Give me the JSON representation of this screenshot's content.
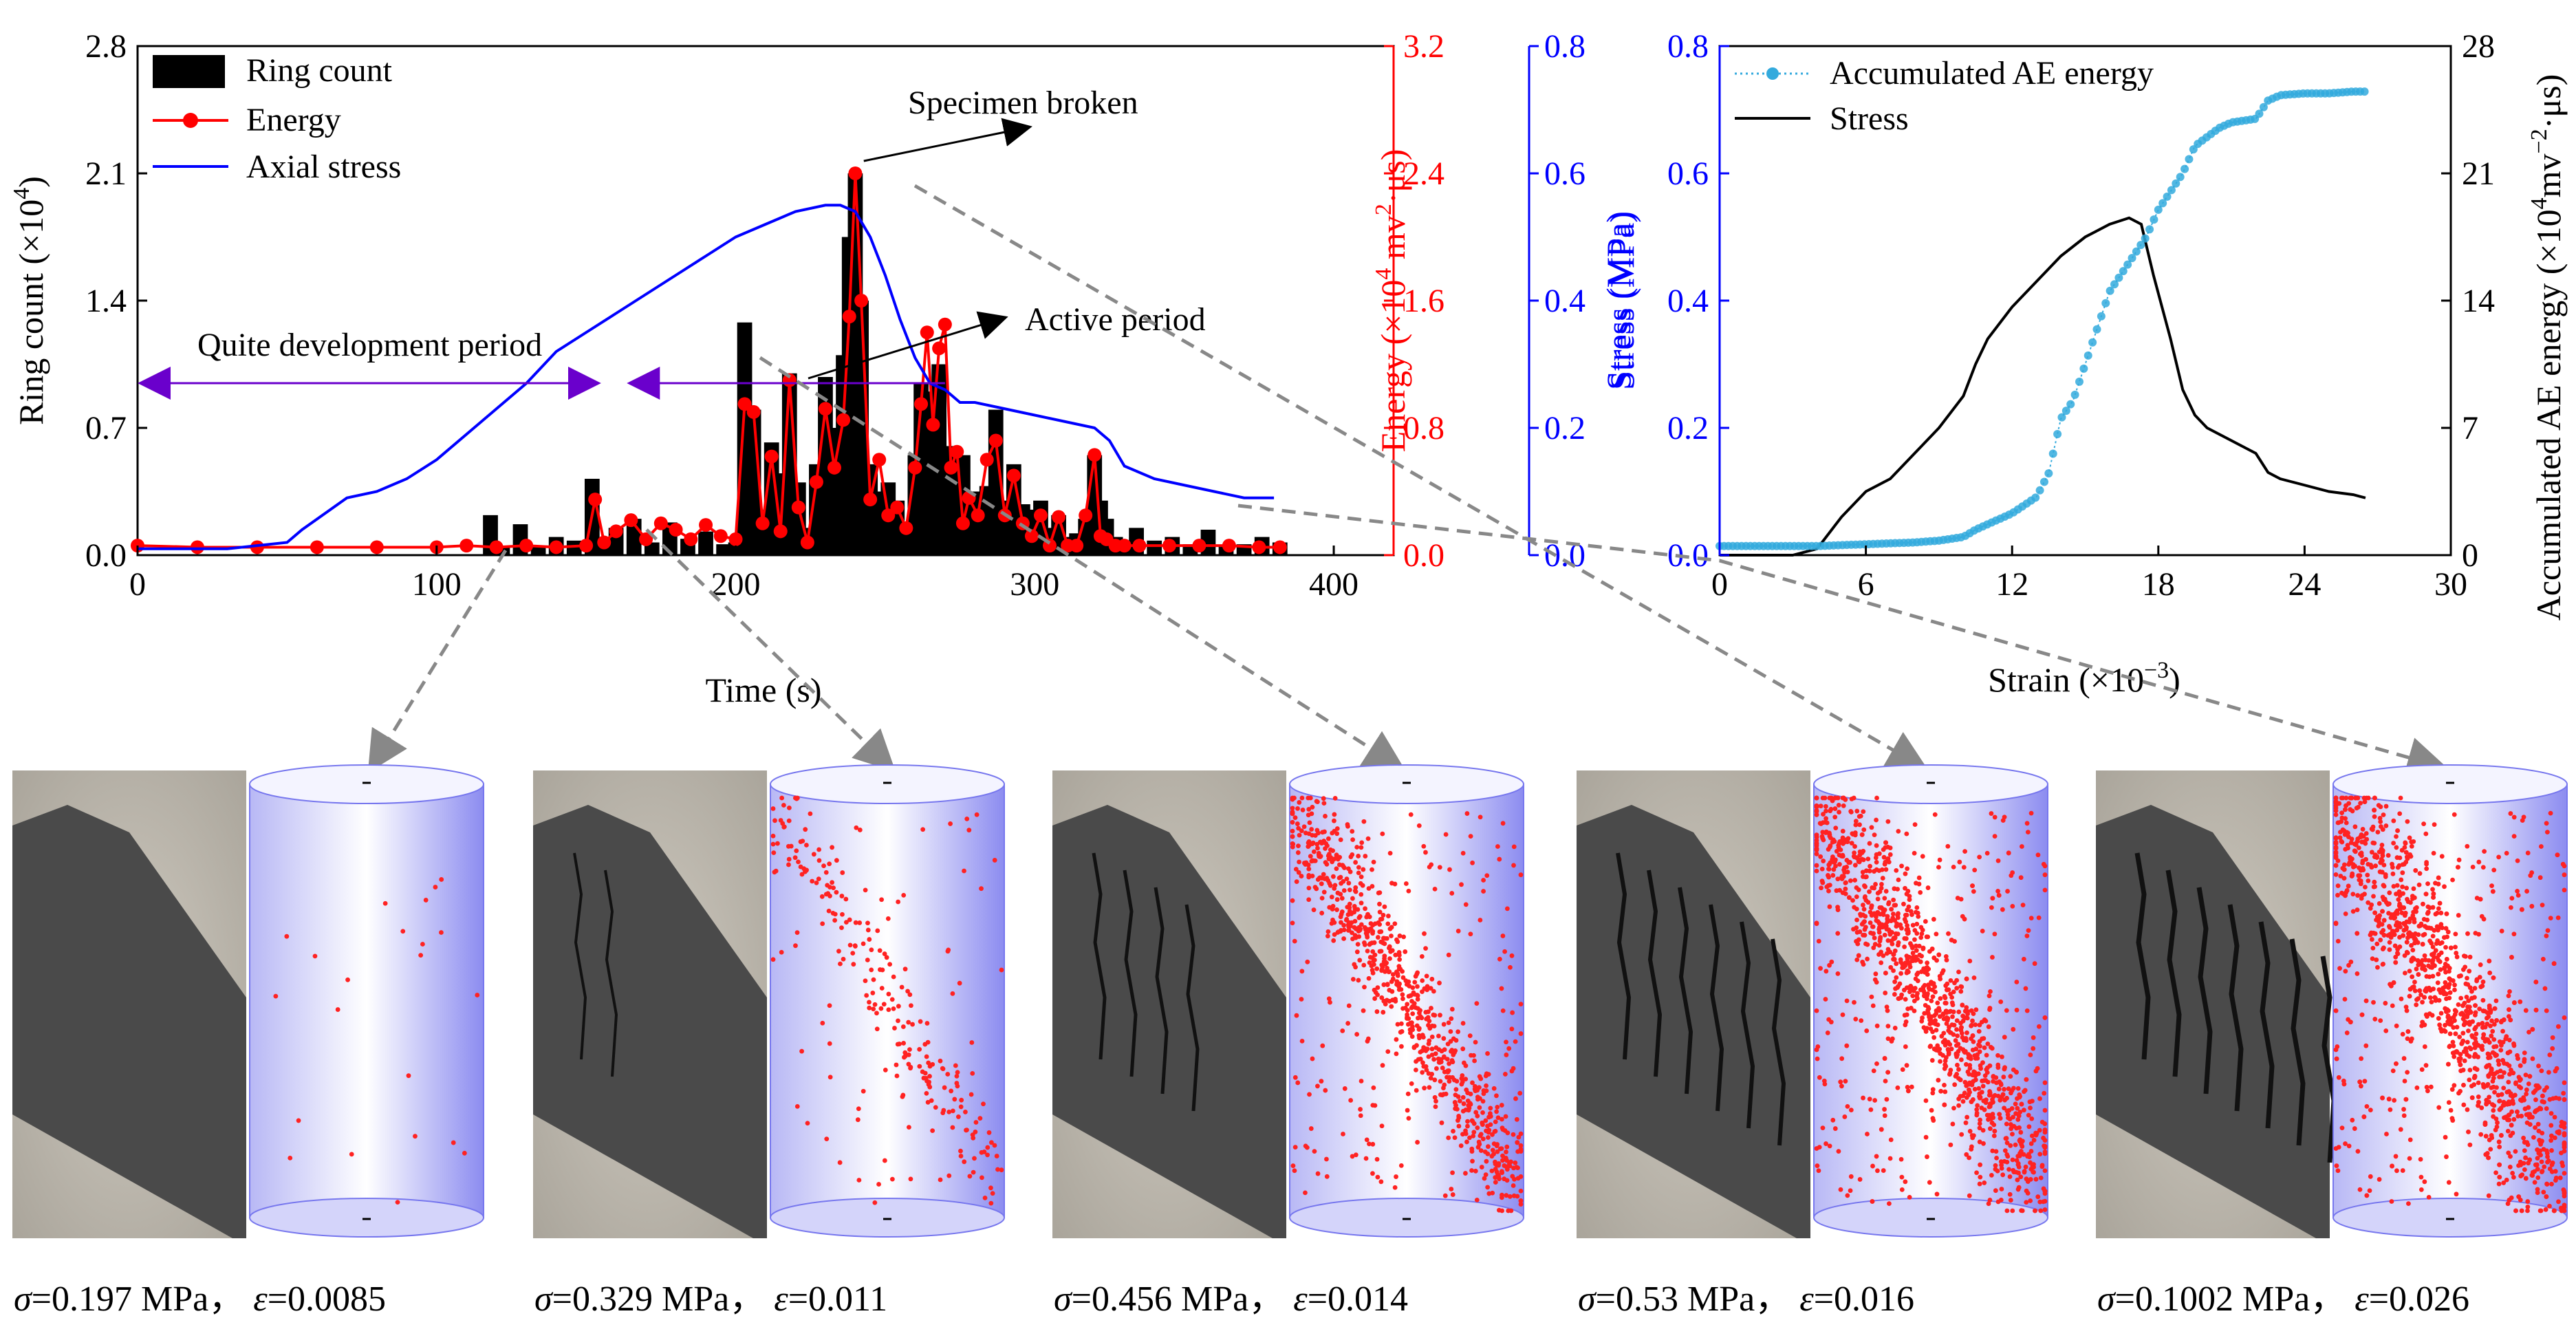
{
  "chart_data": [
    {
      "type": "bar+line",
      "title": "",
      "xlabel": "Time (s)",
      "xlim": [
        0,
        420
      ],
      "xticks": [
        0,
        100,
        200,
        300,
        400
      ],
      "y_left": {
        "label": "Ring count (×10",
        "label_exp": "4",
        "label_tail": ")",
        "lim": [
          0,
          2.8
        ],
        "ticks": [
          "0.0",
          "0.7",
          "1.4",
          "2.1",
          "2.8"
        ]
      },
      "y_right_energy": {
        "label": "Energy (×10",
        "label_exp": "4",
        "label_tail": " mv",
        "label_exp2": "2",
        "label_end": "·μs)",
        "lim": [
          0,
          3.2
        ],
        "ticks": [
          "0.0",
          "0.8",
          "1.6",
          "2.4",
          "3.2"
        ],
        "color": "#ff0000"
      },
      "y_right_stress": {
        "label": "Stress (MPa)",
        "lim": [
          0,
          0.8
        ],
        "ticks": [
          "0.0",
          "0.2",
          "0.4",
          "0.6",
          "0.8"
        ],
        "color": "#0000ff"
      },
      "legend": [
        {
          "name": "Ring count",
          "color": "#000000",
          "kind": "bar"
        },
        {
          "name": "Energy",
          "color": "#ff0000",
          "kind": "line-marker"
        },
        {
          "name": "Axial stress",
          "color": "#0000ff",
          "kind": "line"
        }
      ],
      "ring_count": {
        "x": [
          118,
          122,
          128,
          134,
          140,
          146,
          152,
          156,
          160,
          166,
          172,
          178,
          184,
          190,
          196,
          200,
          203,
          206,
          209,
          212,
          215,
          218,
          221,
          224,
          227,
          230,
          233,
          236,
          238,
          240,
          242,
          245,
          248,
          251,
          254,
          257,
          260,
          262,
          264,
          266,
          268,
          270,
          272,
          274,
          276,
          278,
          281,
          284,
          287,
          290,
          293,
          296,
          299,
          302,
          305,
          308,
          311,
          314,
          317,
          320,
          322,
          324,
          327,
          330,
          334,
          340,
          346,
          352,
          358,
          364,
          370,
          376,
          382
        ],
        "values": [
          0.22,
          0.05,
          0.17,
          0.05,
          0.1,
          0.08,
          0.42,
          0.06,
          0.15,
          0.2,
          0.07,
          0.18,
          0.09,
          0.13,
          0.06,
          0.07,
          1.28,
          0.8,
          0.25,
          0.62,
          0.45,
          1.0,
          0.4,
          0.15,
          0.5,
          0.98,
          0.7,
          1.1,
          1.75,
          2.1,
          1.4,
          0.5,
          0.35,
          0.4,
          0.3,
          0.18,
          0.55,
          0.95,
          0.9,
          0.5,
          1.05,
          0.52,
          0.6,
          0.4,
          0.55,
          0.3,
          0.35,
          0.38,
          0.8,
          0.3,
          0.5,
          0.28,
          0.25,
          0.3,
          0.15,
          0.22,
          0.1,
          0.12,
          0.2,
          0.55,
          0.3,
          0.2,
          0.1,
          0.08,
          0.15,
          0.08,
          0.1,
          0.06,
          0.14,
          0.05,
          0.06,
          0.1,
          0.07
        ]
      },
      "energy": {
        "x": [
          0,
          20,
          40,
          60,
          80,
          100,
          110,
          120,
          130,
          140,
          150,
          153,
          156,
          160,
          165,
          170,
          175,
          180,
          185,
          190,
          195,
          200,
          203,
          206,
          209,
          212,
          215,
          218,
          221,
          224,
          227,
          230,
          233,
          236,
          238,
          240,
          242,
          245,
          248,
          251,
          254,
          257,
          260,
          262,
          264,
          266,
          268,
          270,
          272,
          274,
          276,
          278,
          281,
          284,
          287,
          290,
          293,
          296,
          299,
          302,
          305,
          308,
          311,
          314,
          317,
          320,
          322,
          324,
          327,
          330,
          335,
          345,
          355,
          365,
          375,
          382
        ],
        "values": [
          0.06,
          0.05,
          0.05,
          0.05,
          0.05,
          0.05,
          0.06,
          0.05,
          0.06,
          0.05,
          0.06,
          0.35,
          0.08,
          0.15,
          0.22,
          0.1,
          0.2,
          0.16,
          0.1,
          0.19,
          0.12,
          0.1,
          0.95,
          0.9,
          0.2,
          0.62,
          0.15,
          1.1,
          0.3,
          0.08,
          0.46,
          0.92,
          0.55,
          0.85,
          1.5,
          2.4,
          1.6,
          0.35,
          0.6,
          0.25,
          0.3,
          0.17,
          0.55,
          0.95,
          1.4,
          0.82,
          1.3,
          1.45,
          0.55,
          0.65,
          0.2,
          0.36,
          0.25,
          0.6,
          0.72,
          0.25,
          0.5,
          0.2,
          0.12,
          0.25,
          0.06,
          0.24,
          0.06,
          0.06,
          0.25,
          0.63,
          0.12,
          0.1,
          0.06,
          0.06,
          0.06,
          0.06,
          0.06,
          0.06,
          0.05,
          0.05
        ]
      },
      "axial_stress": {
        "x": [
          0,
          30,
          50,
          55,
          70,
          80,
          90,
          100,
          110,
          120,
          130,
          140,
          150,
          160,
          170,
          180,
          190,
          200,
          210,
          220,
          230,
          235,
          240,
          245,
          250,
          255,
          260,
          265,
          270,
          275,
          280,
          290,
          300,
          310,
          320,
          325,
          330,
          340,
          350,
          360,
          370,
          380
        ],
        "values": [
          0.01,
          0.01,
          0.02,
          0.04,
          0.09,
          0.1,
          0.12,
          0.15,
          0.19,
          0.23,
          0.27,
          0.32,
          0.35,
          0.38,
          0.41,
          0.44,
          0.47,
          0.5,
          0.52,
          0.54,
          0.55,
          0.55,
          0.54,
          0.5,
          0.44,
          0.37,
          0.31,
          0.27,
          0.26,
          0.24,
          0.24,
          0.23,
          0.22,
          0.21,
          0.2,
          0.18,
          0.14,
          0.12,
          0.11,
          0.1,
          0.09,
          0.09
        ]
      },
      "annotations": {
        "specimen_broken": "Specimen broken",
        "active_period": "Active period",
        "quiet_period": "Quite development period",
        "quiet_range": [
          0,
          155
        ],
        "active_range": [
          165,
          270
        ]
      }
    },
    {
      "type": "line",
      "title": "",
      "xlabel": "Strain (×10",
      "xlabel_exp": "−3",
      "xlabel_tail": ")",
      "xlim": [
        0,
        30
      ],
      "xticks": [
        "0",
        "6",
        "12",
        "18",
        "24",
        "30"
      ],
      "y_left": {
        "label": "Stress (MPa)",
        "lim": [
          0,
          0.8
        ],
        "ticks": [
          "0.0",
          "0.2",
          "0.4",
          "0.6",
          "0.8"
        ],
        "color": "#0000ff"
      },
      "y_right": {
        "label": "Accumulated AE energy (×10",
        "label_exp": "4",
        "label_tail": "mv",
        "label_exp2": "−2",
        "label_end": "·μs)",
        "lim": [
          0,
          28
        ],
        "ticks": [
          "0",
          "7",
          "14",
          "21",
          "28"
        ]
      },
      "legend": [
        {
          "name": "Accumulated AE energy",
          "color": "#33aadd",
          "kind": "dot-line"
        },
        {
          "name": "Stress",
          "color": "#000000",
          "kind": "line"
        }
      ],
      "stress": {
        "x": [
          0,
          3,
          4,
          5,
          6,
          7,
          8,
          9,
          10,
          10.5,
          11,
          12,
          13,
          14,
          15,
          16,
          16.8,
          17.3,
          17.8,
          18.5,
          19,
          19.5,
          20,
          21,
          22,
          22.5,
          23,
          24,
          25,
          26,
          26.5
        ],
        "values": [
          0,
          0,
          0.01,
          0.06,
          0.1,
          0.12,
          0.16,
          0.2,
          0.25,
          0.3,
          0.34,
          0.39,
          0.43,
          0.47,
          0.5,
          0.52,
          0.53,
          0.52,
          0.44,
          0.34,
          0.26,
          0.22,
          0.2,
          0.18,
          0.16,
          0.13,
          0.12,
          0.11,
          0.1,
          0.095,
          0.09
        ]
      },
      "accumulated_energy": {
        "x": [
          0,
          2,
          4,
          6,
          8,
          9,
          10,
          10.5,
          11,
          12,
          13,
          13.5,
          14,
          14.5,
          15,
          15.5,
          16,
          16.5,
          17,
          17.5,
          18,
          19,
          19.5,
          20,
          20.5,
          21,
          21.5,
          22,
          22.5,
          23,
          24,
          25,
          26,
          26.5
        ],
        "values": [
          0.5,
          0.5,
          0.5,
          0.6,
          0.7,
          0.8,
          1.0,
          1.4,
          1.7,
          2.3,
          3.2,
          4.5,
          7.5,
          8.5,
          10.5,
          12.5,
          14.5,
          15.5,
          16.5,
          17.5,
          19.0,
          21.0,
          22.5,
          23.0,
          23.5,
          23.8,
          23.9,
          24.0,
          25.0,
          25.3,
          25.4,
          25.4,
          25.5,
          25.5
        ]
      }
    }
  ],
  "panels": [
    {
      "sigma": "0.197",
      "eps": "0.0085",
      "unit": " MPa",
      "sep": "，",
      "sigma_sym": "σ",
      "eps_sym": "ε"
    },
    {
      "sigma": "0.329",
      "eps": "0.011",
      "unit": " MPa",
      "sep": "，",
      "sigma_sym": "σ",
      "eps_sym": "ε"
    },
    {
      "sigma": "0.456",
      "eps": "0.014",
      "unit": " MPa",
      "sep": "，",
      "sigma_sym": "σ",
      "eps_sym": "ε"
    },
    {
      "sigma": "0.53",
      "eps": "0.016",
      "unit": " MPa",
      "sep": "，",
      "sigma_sym": "σ",
      "eps_sym": "ε"
    },
    {
      "sigma": "0.1002",
      "eps": "0.026",
      "unit": " MPa",
      "sep": "，",
      "sigma_sym": "σ",
      "eps_sym": "ε"
    }
  ],
  "panel_ae_event_counts": [
    22,
    260,
    900,
    1300,
    1500
  ],
  "colors": {
    "energy": "#ff0000",
    "stress": "#0000ff",
    "accum": "#33aadd",
    "arrow": "#888888",
    "cylinder": "#8888ee",
    "ae_points": "#ff2222",
    "specimen_light": "#bdb8ae",
    "specimen_dark": "#4a4a4a"
  }
}
